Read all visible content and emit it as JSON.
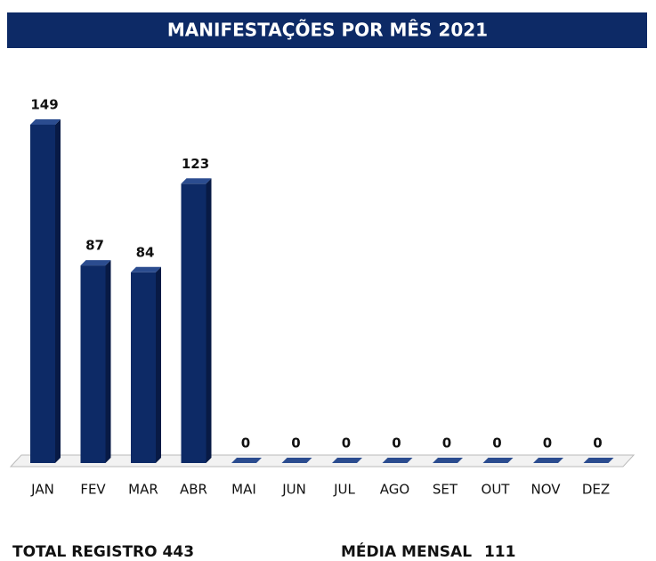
{
  "chart_data": {
    "type": "bar3d",
    "title": "MANIFESTAÇÕES POR MÊS 2021",
    "categories": [
      "JAN",
      "FEV",
      "MAR",
      "ABR",
      "MAI",
      "JUN",
      "JUL",
      "AGO",
      "SET",
      "OUT",
      "NOV",
      "DEZ"
    ],
    "values": [
      149,
      87,
      84,
      123,
      0,
      0,
      0,
      0,
      0,
      0,
      0,
      0
    ],
    "color": "#0d2a66"
  },
  "footer": {
    "total_label": "TOTAL REGISTRO",
    "total": 443,
    "average_label": "MÉDIA MENSAL",
    "average": 111
  }
}
